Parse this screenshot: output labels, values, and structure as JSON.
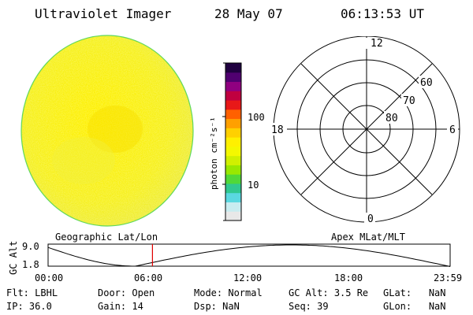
{
  "header": {
    "title": "Ultraviolet Imager",
    "date": "28 May 07",
    "time": "06:13:53 UT"
  },
  "colorbar": {
    "unit_label": "photon cm⁻²s⁻¹",
    "tick_100": "100",
    "tick_10": "10",
    "colors": [
      "#e8e8e8",
      "#c8ecf0",
      "#5ad8e0",
      "#30c890",
      "#50d838",
      "#98e800",
      "#d0f000",
      "#f4f800",
      "#fff000",
      "#ffd000",
      "#ffa000",
      "#ff6000",
      "#e81818",
      "#c00040",
      "#900080",
      "#500070",
      "#200040"
    ]
  },
  "polar_plot": {
    "label_top": "12",
    "label_bottom": "0",
    "label_left": "18",
    "label_right": "6",
    "lat_60": "60",
    "lat_70": "70",
    "lat_80": "80"
  },
  "timeline": {
    "left_label": "Geographic Lat/Lon",
    "right_label": "Apex MLat/MLT",
    "axis_title": "GC Alt",
    "y_max": "9.0",
    "y_min": "1.8",
    "x_ticks": [
      "00:00",
      "06:00",
      "12:00",
      "18:00",
      "23:59"
    ],
    "marker_time_hours": 6.23
  },
  "status": {
    "filter": {
      "label": "Flt:",
      "value": "LBHL"
    },
    "ip": {
      "label": "IP:",
      "value": "36.0"
    },
    "door": {
      "label": "Door:",
      "value": "Open"
    },
    "gain": {
      "label": "Gain:",
      "value": "14"
    },
    "mode": {
      "label": "Mode:",
      "value": "Normal"
    },
    "dsp": {
      "label": "Dsp:",
      "value": "NaN"
    },
    "gc_alt": {
      "label": "GC Alt:",
      "value": "3.5 Re"
    },
    "seq": {
      "label": "Seq:",
      "value": "39"
    },
    "glat": {
      "label": "GLat:",
      "value": "NaN"
    },
    "glon": {
      "label": "GLon:",
      "value": "NaN"
    }
  }
}
